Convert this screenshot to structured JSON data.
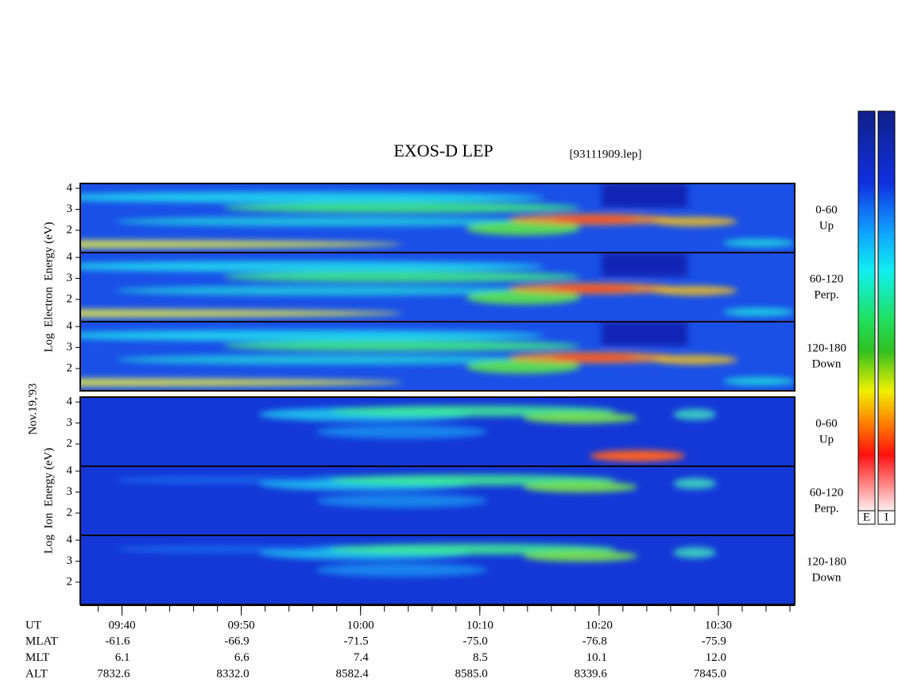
{
  "chart_data": {
    "type": "spectrogram",
    "title": "EXOS-D LEP",
    "file": "[93111909.lep]",
    "date": "Nov.19,'93",
    "groups": [
      {
        "ylabel": "Log  Electron  Energy (eV)",
        "panels": [
          {
            "angle": "0-60",
            "direction": "Up"
          },
          {
            "angle": "60-120",
            "direction": "Perp."
          },
          {
            "angle": "120-180",
            "direction": "Down"
          }
        ]
      },
      {
        "ylabel": "Log  Ion  Energy (eV)",
        "panels": [
          {
            "angle": "0-60",
            "direction": "Up"
          },
          {
            "angle": "60-120",
            "direction": "Perp."
          },
          {
            "angle": "120-180",
            "direction": "Down"
          }
        ]
      }
    ],
    "ylim": [
      0.94,
      4.23
    ],
    "yticks": [
      2,
      3,
      4
    ],
    "xlim": [
      576.5,
      636.4
    ],
    "xticks": [
      {
        "value": 580,
        "label": "09:40"
      },
      {
        "value": 590,
        "label": "09:50"
      },
      {
        "value": 600,
        "label": "10:00"
      },
      {
        "value": 610,
        "label": "10:10"
      },
      {
        "value": 620,
        "label": "10:20"
      },
      {
        "value": 630,
        "label": "10:30"
      }
    ],
    "x_row_name": "UT",
    "orbit_rows": [
      {
        "name": "MLAT",
        "values": [
          "-61.6",
          "-66.9",
          "-71.5",
          "-75.0",
          "-76.8",
          "-75.9"
        ]
      },
      {
        "name": "MLT",
        "values": [
          "6.1",
          "6.6",
          "7.4",
          "8.5",
          "10.1",
          "12.0"
        ]
      },
      {
        "name": "ALT",
        "values": [
          "7832.6",
          "8332.0",
          "8582.4",
          "8585.0",
          "8339.6",
          "7845.0"
        ]
      }
    ],
    "colorbar_labels": [
      "E",
      "I"
    ]
  }
}
